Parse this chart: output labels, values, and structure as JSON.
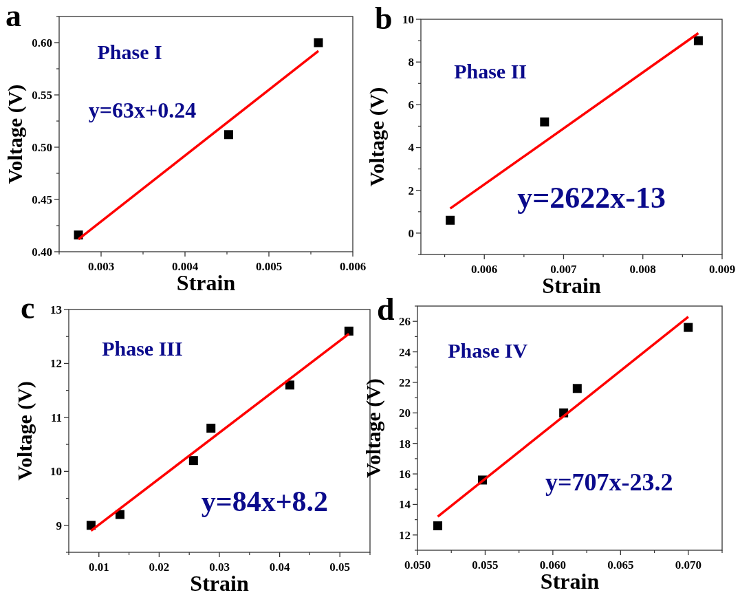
{
  "chart_data": [
    {
      "type": "scatter",
      "title": "a",
      "xlabel": "Strain",
      "ylabel": "Voltage (V)",
      "annotations": [
        "Phase I",
        "y=63x+0.24"
      ],
      "grid": false,
      "xlim": [
        0.0025,
        0.006
      ],
      "xticks": [
        0.003,
        0.004,
        0.005,
        0.006
      ],
      "ylim": [
        0.4,
        0.625
      ],
      "yticks": [
        {
          "value": 0.4,
          "label": "0.40"
        },
        {
          "value": 0.45,
          "label": "0.45"
        },
        {
          "value": 0.5,
          "label": "0.50"
        },
        {
          "value": 0.55,
          "label": "0.55"
        },
        {
          "value": 0.6,
          "label": "0.60"
        }
      ],
      "series": [
        {
          "color": "#000000",
          "marker": "square",
          "x": [
            0.00273,
            0.00452,
            0.00559
          ],
          "values": [
            0.416,
            0.512,
            0.6
          ]
        },
        {
          "type": "line",
          "marker": "none",
          "color": "#ff0000",
          "x": [
            0.00273,
            0.00559
          ],
          "values": [
            0.412,
            0.592
          ]
        }
      ]
    },
    {
      "type": "scatter",
      "title": "b",
      "xlabel": "Strain",
      "ylabel": "Voltage (V)",
      "annotations": [
        "Phase II",
        "y=2622x-13"
      ],
      "grid": false,
      "xlim": [
        0.0052,
        0.009
      ],
      "xticks": [
        0.006,
        0.007,
        0.008,
        0.009
      ],
      "ylim": [
        -1,
        10
      ],
      "yticks": [
        0,
        2,
        4,
        6,
        8,
        10
      ],
      "series": [
        {
          "color": "#000000",
          "marker": "square",
          "x": [
            0.00557,
            0.00676,
            0.0087
          ],
          "values": [
            0.6,
            5.2,
            9.0
          ]
        },
        {
          "type": "line",
          "marker": "none",
          "color": "#ff0000",
          "x": [
            0.00557,
            0.0087
          ],
          "values": [
            1.15,
            9.35
          ]
        }
      ]
    },
    {
      "type": "scatter",
      "title": "c",
      "xlabel": "Strain",
      "ylabel": "Voltage (V)",
      "annotations": [
        "Phase III",
        "y=84x+8.2"
      ],
      "grid": false,
      "xlim": [
        0.005,
        0.055
      ],
      "xticks": [
        0.01,
        0.02,
        0.03,
        0.04,
        0.05
      ],
      "ylim": [
        8.5,
        13
      ],
      "yticks": [
        9,
        10,
        11,
        12,
        13
      ],
      "series": [
        {
          "color": "#000000",
          "marker": "square",
          "x": [
            0.0087,
            0.0135,
            0.0257,
            0.0286,
            0.0417,
            0.0515
          ],
          "values": [
            9.0,
            9.2,
            10.2,
            10.8,
            11.6,
            12.6
          ]
        },
        {
          "type": "line",
          "marker": "none",
          "color": "#ff0000",
          "x": [
            0.0087,
            0.0515
          ],
          "values": [
            8.9,
            12.55
          ]
        }
      ]
    },
    {
      "type": "scatter",
      "title": "d",
      "xlabel": "Strain",
      "ylabel": "Voltage (V)",
      "annotations": [
        "Phase IV",
        "y=707x-23.2"
      ],
      "grid": false,
      "xlim": [
        0.05,
        0.0725
      ],
      "xticks": [
        {
          "value": 0.05,
          "label": "0.050"
        },
        0.055,
        {
          "value": 0.06,
          "label": "0.060"
        },
        0.065,
        {
          "value": 0.07,
          "label": "0.070"
        }
      ],
      "ylim": [
        11,
        27
      ],
      "yticks": [
        12,
        14,
        16,
        18,
        20,
        22,
        24,
        26
      ],
      "series": [
        {
          "color": "#000000",
          "marker": "square",
          "x": [
            0.0515,
            0.0548,
            0.0608,
            0.0618,
            0.07
          ],
          "values": [
            12.6,
            15.6,
            20.0,
            21.6,
            25.6
          ]
        },
        {
          "type": "line",
          "marker": "none",
          "color": "#ff0000",
          "x": [
            0.0515,
            0.07
          ],
          "values": [
            13.2,
            26.3
          ]
        }
      ]
    }
  ]
}
